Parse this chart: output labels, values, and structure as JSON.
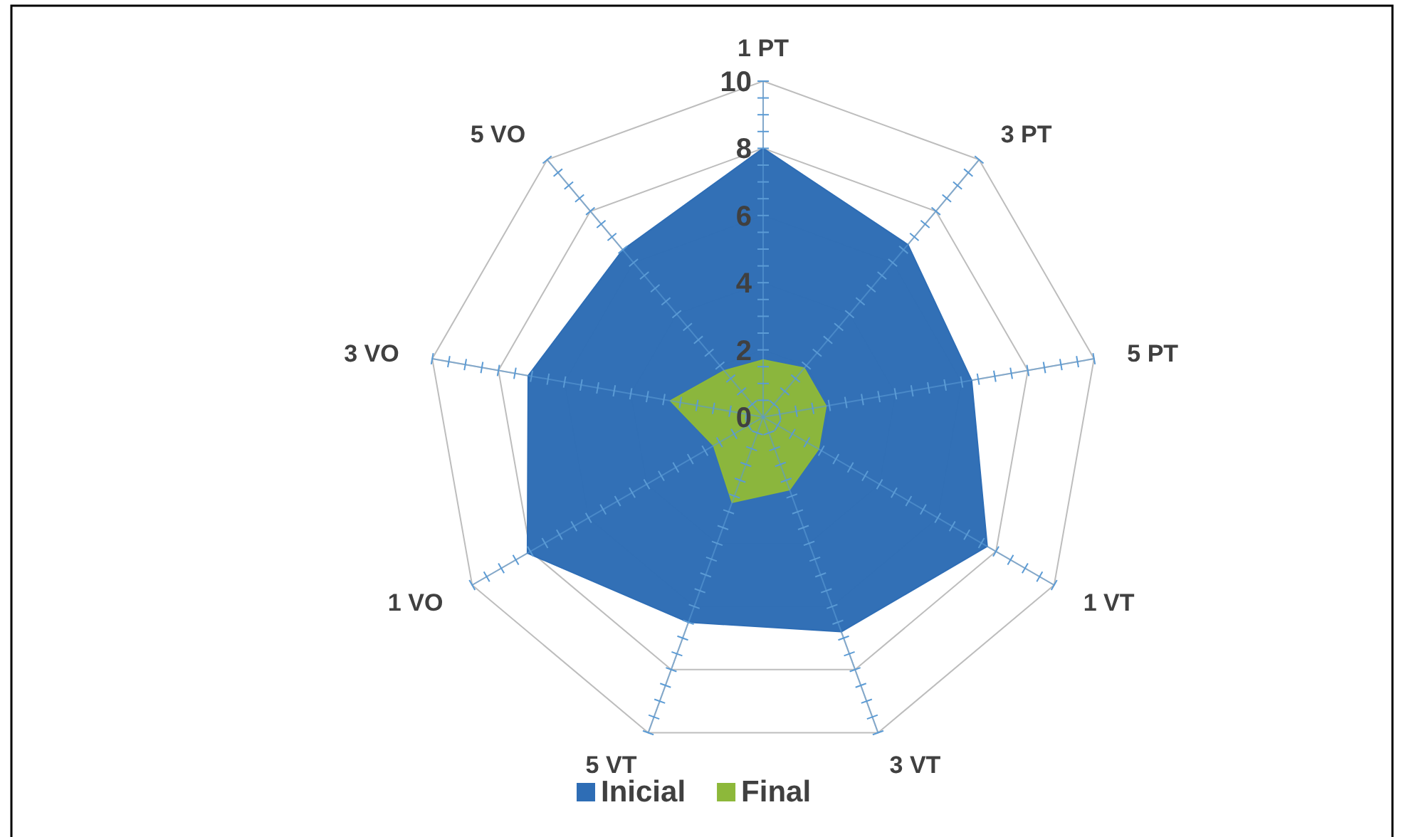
{
  "chart_data": {
    "type": "radar",
    "categories": [
      "1 PT",
      "3 PT",
      "5 PT",
      "1 VT",
      "3 VT",
      "5 VT",
      "1 VO",
      "3 VO",
      "5 VO"
    ],
    "series": [
      {
        "name": "Inicial",
        "color": "#2e6db5",
        "values": [
          8,
          6.7,
          6.3,
          7.7,
          6.8,
          6.5,
          8.1,
          7.1,
          6.5
        ]
      },
      {
        "name": "Final",
        "color": "#8db83a",
        "values": [
          1.7,
          1.9,
          1.9,
          1.9,
          2.3,
          2.7,
          1.7,
          2.8,
          1.8
        ]
      }
    ],
    "ylim": [
      0,
      10
    ],
    "yticks": [
      0,
      2,
      4,
      6,
      8,
      10
    ],
    "grid": true,
    "legend": "bottom"
  }
}
